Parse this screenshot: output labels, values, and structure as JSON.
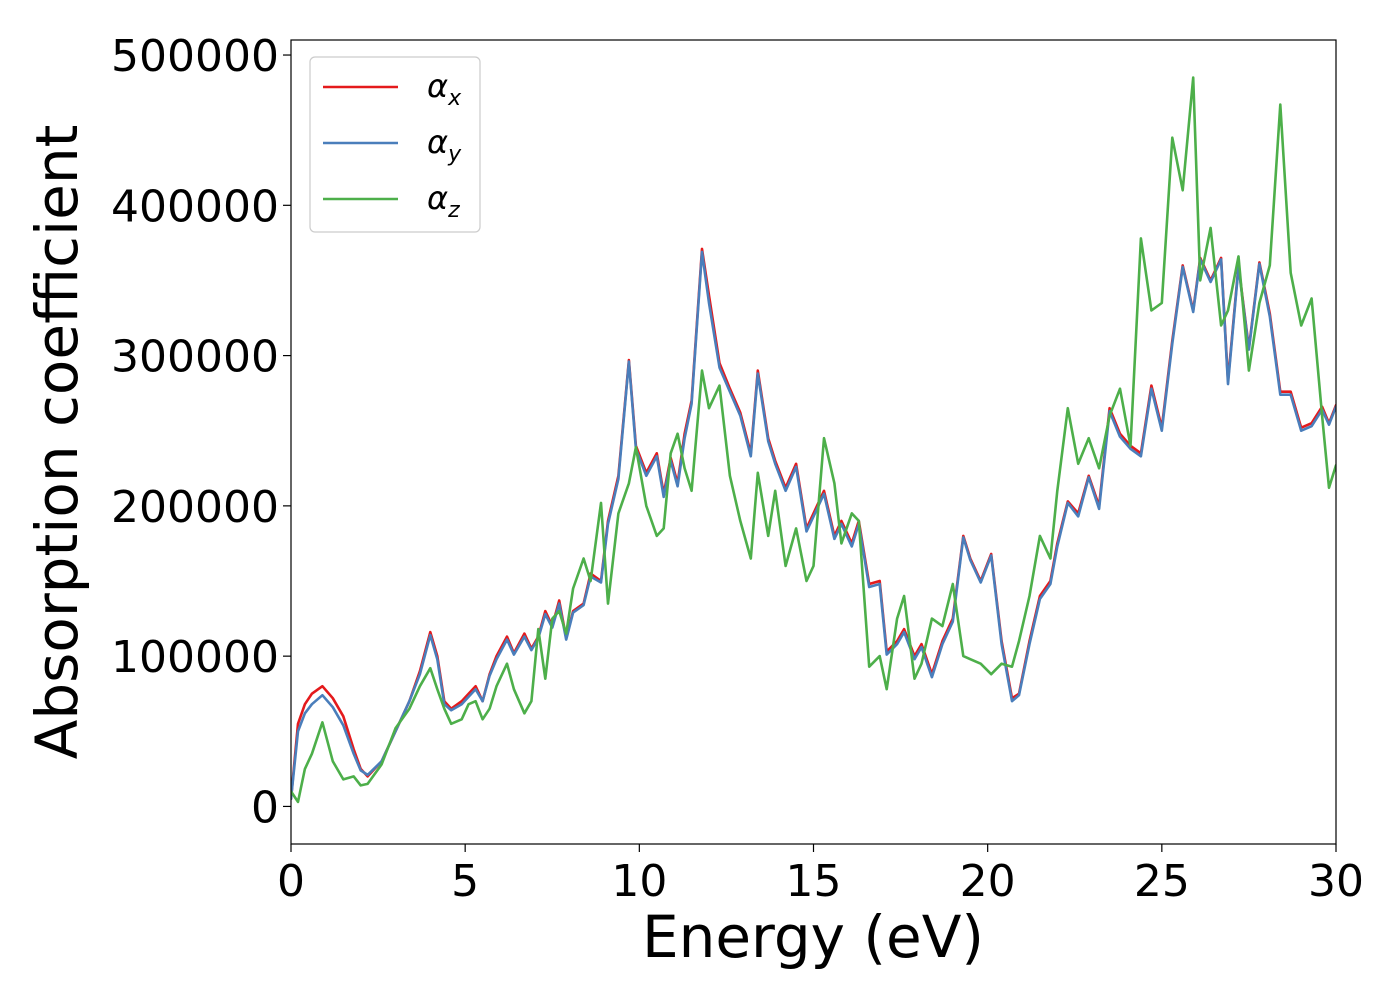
{
  "chart_data": {
    "type": "line",
    "xlabel": "Energy (eV)",
    "ylabel": "Absorption coefficient",
    "xlim": [
      0,
      30
    ],
    "ylim": [
      -25000,
      510000
    ],
    "xticks": [
      0,
      5,
      10,
      15,
      20,
      25,
      30
    ],
    "xtick_labels": [
      "0",
      "5",
      "10",
      "15",
      "20",
      "25",
      "30"
    ],
    "yticks": [
      0,
      100000,
      200000,
      300000,
      400000,
      500000
    ],
    "ytick_labels": [
      "0",
      "100000",
      "200000",
      "300000",
      "400000",
      "500000"
    ],
    "grid": false,
    "legend_position": "top-left",
    "series": [
      {
        "name": "α",
        "subscript": "x",
        "color": "#e41a1c",
        "x": [
          0,
          0.2,
          0.4,
          0.6,
          0.9,
          1.2,
          1.5,
          1.8,
          2.0,
          2.2,
          2.6,
          3.0,
          3.4,
          3.7,
          4.0,
          4.2,
          4.4,
          4.6,
          4.9,
          5.1,
          5.3,
          5.5,
          5.7,
          5.9,
          6.2,
          6.4,
          6.7,
          6.9,
          7.1,
          7.3,
          7.5,
          7.7,
          7.9,
          8.1,
          8.4,
          8.6,
          8.9,
          9.1,
          9.4,
          9.7,
          9.9,
          10.2,
          10.5,
          10.7,
          10.9,
          11.1,
          11.3,
          11.5,
          11.8,
          12.0,
          12.3,
          12.6,
          12.9,
          13.2,
          13.4,
          13.7,
          13.9,
          14.2,
          14.5,
          14.8,
          15.0,
          15.3,
          15.6,
          15.8,
          16.1,
          16.3,
          16.6,
          16.9,
          17.1,
          17.4,
          17.6,
          17.9,
          18.1,
          18.4,
          18.7,
          19.0,
          19.3,
          19.5,
          19.8,
          20.1,
          20.4,
          20.7,
          20.9,
          21.2,
          21.5,
          21.8,
          22.0,
          22.3,
          22.6,
          22.9,
          23.2,
          23.5,
          23.8,
          24.1,
          24.4,
          24.7,
          25.0,
          25.3,
          25.6,
          25.9,
          26.1,
          26.4,
          26.7,
          26.9,
          27.2,
          27.5,
          27.8,
          28.1,
          28.4,
          28.7,
          29.0,
          29.3,
          29.6,
          29.8,
          30.0
        ],
        "y": [
          5000,
          55000,
          68000,
          75000,
          80000,
          72000,
          60000,
          38000,
          25000,
          20000,
          30000,
          50000,
          70000,
          90000,
          116000,
          100000,
          70000,
          65000,
          70000,
          75000,
          80000,
          70000,
          88000,
          100000,
          113000,
          102000,
          115000,
          105000,
          113000,
          130000,
          120000,
          137000,
          112000,
          130000,
          135000,
          155000,
          150000,
          190000,
          220000,
          297000,
          240000,
          222000,
          235000,
          208000,
          232000,
          215000,
          248000,
          270000,
          371000,
          340000,
          295000,
          278000,
          262000,
          235000,
          290000,
          245000,
          230000,
          212000,
          228000,
          185000,
          195000,
          210000,
          180000,
          190000,
          175000,
          190000,
          148000,
          150000,
          103000,
          110000,
          118000,
          100000,
          108000,
          88000,
          110000,
          125000,
          180000,
          165000,
          150000,
          168000,
          110000,
          72000,
          75000,
          110000,
          140000,
          150000,
          175000,
          203000,
          195000,
          220000,
          200000,
          265000,
          248000,
          240000,
          235000,
          280000,
          252000,
          310000,
          360000,
          330000,
          365000,
          350000,
          365000,
          283000,
          360000,
          305000,
          362000,
          328000,
          276000,
          276000,
          252000,
          255000,
          266000,
          255000,
          267000
        ]
      },
      {
        "name": "α",
        "subscript": "y",
        "color": "#4a7ebb",
        "x": [
          0,
          0.2,
          0.4,
          0.6,
          0.9,
          1.2,
          1.5,
          1.8,
          2.0,
          2.2,
          2.6,
          3.0,
          3.4,
          3.7,
          4.0,
          4.2,
          4.4,
          4.6,
          4.9,
          5.1,
          5.3,
          5.5,
          5.7,
          5.9,
          6.2,
          6.4,
          6.7,
          6.9,
          7.1,
          7.3,
          7.5,
          7.7,
          7.9,
          8.1,
          8.4,
          8.6,
          8.9,
          9.1,
          9.4,
          9.7,
          9.9,
          10.2,
          10.5,
          10.7,
          10.9,
          11.1,
          11.3,
          11.5,
          11.8,
          12.0,
          12.3,
          12.6,
          12.9,
          13.2,
          13.4,
          13.7,
          13.9,
          14.2,
          14.5,
          14.8,
          15.0,
          15.3,
          15.6,
          15.8,
          16.1,
          16.3,
          16.6,
          16.9,
          17.1,
          17.4,
          17.6,
          17.9,
          18.1,
          18.4,
          18.7,
          19.0,
          19.3,
          19.5,
          19.8,
          20.1,
          20.4,
          20.7,
          20.9,
          21.2,
          21.5,
          21.8,
          22.0,
          22.3,
          22.6,
          22.9,
          23.2,
          23.5,
          23.8,
          24.1,
          24.4,
          24.7,
          25.0,
          25.3,
          25.6,
          25.9,
          26.1,
          26.4,
          26.7,
          26.9,
          27.2,
          27.5,
          27.8,
          28.1,
          28.4,
          28.7,
          29.0,
          29.3,
          29.6,
          29.8,
          30.0
        ],
        "y": [
          5000,
          50000,
          62000,
          68000,
          74000,
          66000,
          54000,
          35000,
          24000,
          21000,
          30000,
          50000,
          70000,
          88000,
          114000,
          98000,
          68000,
          64000,
          68000,
          73000,
          78000,
          70000,
          87000,
          98000,
          111000,
          101000,
          113000,
          104000,
          112000,
          128000,
          119000,
          135000,
          111000,
          129000,
          134000,
          153000,
          149000,
          188000,
          218000,
          296000,
          238000,
          220000,
          233000,
          206000,
          230000,
          213000,
          245000,
          268000,
          369000,
          335000,
          292000,
          276000,
          260000,
          233000,
          288000,
          243000,
          228000,
          210000,
          226000,
          183000,
          193000,
          208000,
          178000,
          188000,
          173000,
          188000,
          146000,
          148000,
          101000,
          108000,
          116000,
          98000,
          106000,
          86000,
          108000,
          123000,
          179000,
          164000,
          149000,
          167000,
          108000,
          70000,
          74000,
          108000,
          138000,
          148000,
          173000,
          202000,
          193000,
          219000,
          198000,
          263000,
          246000,
          238000,
          233000,
          278000,
          250000,
          308000,
          359000,
          329000,
          364000,
          349000,
          364000,
          281000,
          359000,
          304000,
          361000,
          326000,
          274000,
          274000,
          250000,
          253000,
          264000,
          254000,
          266000
        ]
      },
      {
        "name": "α",
        "subscript": "z",
        "color": "#4daf4a",
        "x": [
          0,
          0.2,
          0.4,
          0.6,
          0.9,
          1.2,
          1.5,
          1.8,
          2.0,
          2.2,
          2.6,
          3.0,
          3.4,
          3.7,
          4.0,
          4.2,
          4.4,
          4.6,
          4.9,
          5.1,
          5.3,
          5.5,
          5.7,
          5.9,
          6.2,
          6.4,
          6.7,
          6.9,
          7.1,
          7.3,
          7.5,
          7.7,
          7.9,
          8.1,
          8.4,
          8.6,
          8.9,
          9.1,
          9.4,
          9.7,
          9.9,
          10.2,
          10.5,
          10.7,
          10.9,
          11.1,
          11.3,
          11.5,
          11.8,
          12.0,
          12.3,
          12.6,
          12.9,
          13.2,
          13.4,
          13.7,
          13.9,
          14.2,
          14.5,
          14.8,
          15.0,
          15.3,
          15.6,
          15.8,
          16.1,
          16.3,
          16.6,
          16.9,
          17.1,
          17.4,
          17.6,
          17.9,
          18.1,
          18.4,
          18.7,
          19.0,
          19.3,
          19.5,
          19.8,
          20.1,
          20.4,
          20.7,
          20.9,
          21.2,
          21.5,
          21.8,
          22.0,
          22.3,
          22.6,
          22.9,
          23.2,
          23.5,
          23.8,
          24.1,
          24.4,
          24.7,
          25.0,
          25.3,
          25.6,
          25.9,
          26.1,
          26.4,
          26.7,
          26.9,
          27.2,
          27.5,
          27.8,
          28.1,
          28.4,
          28.7,
          29.0,
          29.3,
          29.6,
          29.8,
          30.0
        ],
        "y": [
          10000,
          3000,
          25000,
          35000,
          56000,
          30000,
          18000,
          20000,
          14000,
          15000,
          28000,
          52000,
          65000,
          80000,
          92000,
          78000,
          65000,
          55000,
          58000,
          68000,
          70000,
          58000,
          65000,
          80000,
          95000,
          78000,
          62000,
          70000,
          118000,
          85000,
          125000,
          130000,
          115000,
          145000,
          165000,
          150000,
          202000,
          135000,
          195000,
          215000,
          239000,
          200000,
          180000,
          185000,
          235000,
          248000,
          225000,
          210000,
          290000,
          265000,
          280000,
          220000,
          190000,
          165000,
          222000,
          180000,
          210000,
          160000,
          185000,
          150000,
          160000,
          245000,
          215000,
          175000,
          195000,
          190000,
          93000,
          100000,
          78000,
          125000,
          140000,
          85000,
          95000,
          125000,
          120000,
          148000,
          100000,
          98000,
          95000,
          88000,
          95000,
          93000,
          110000,
          140000,
          180000,
          165000,
          210000,
          265000,
          228000,
          245000,
          225000,
          260000,
          278000,
          240000,
          378000,
          330000,
          335000,
          445000,
          410000,
          485000,
          350000,
          385000,
          320000,
          330000,
          366000,
          290000,
          335000,
          360000,
          467000,
          355000,
          320000,
          338000,
          260000,
          212000,
          227000
        ]
      }
    ]
  }
}
